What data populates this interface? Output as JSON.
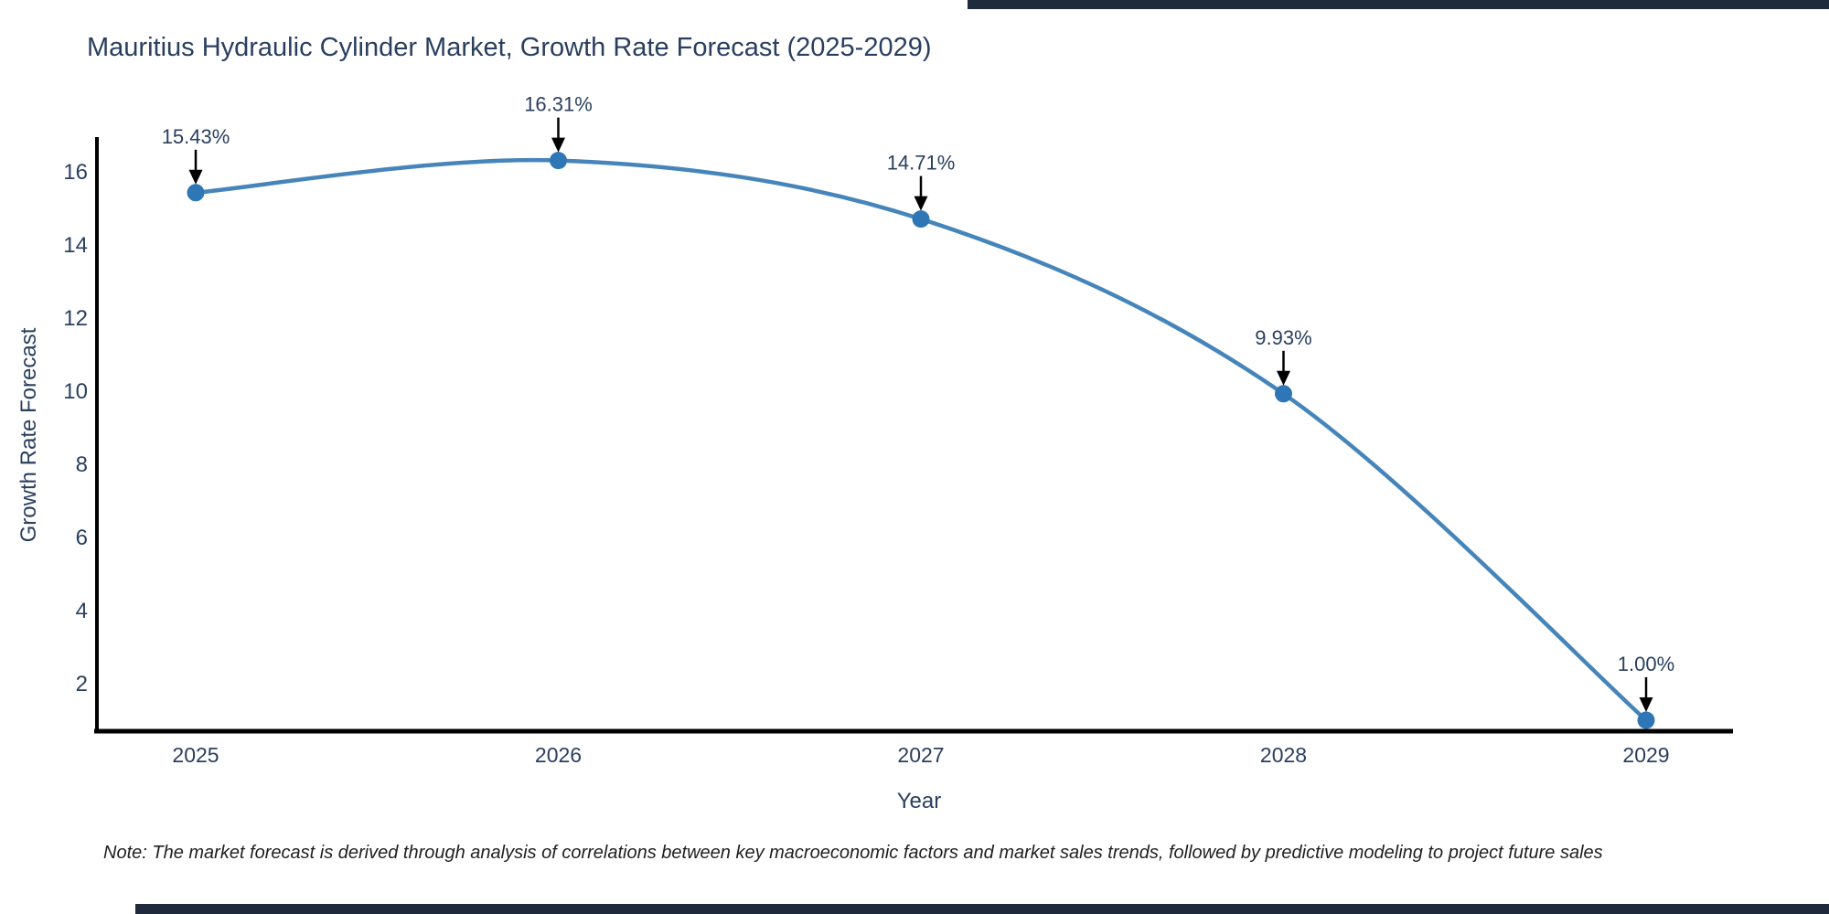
{
  "page": {
    "background": "#ffffff",
    "edge_bar_color": "#1f2a3c"
  },
  "note": "Note: The market forecast is derived through analysis of correlations between key macroeconomic factors and market sales trends, followed by predictive modeling to project future sales",
  "chart_data": {
    "type": "line",
    "title": "Mauritius Hydraulic Cylinder Market, Growth Rate Forecast (2025-2029)",
    "xlabel": "Year",
    "ylabel": "Growth Rate Forecast",
    "x": [
      2025,
      2026,
      2027,
      2028,
      2029
    ],
    "values": [
      15.43,
      16.31,
      14.71,
      9.93,
      1.0
    ],
    "point_labels": [
      "15.43%",
      "16.31%",
      "14.71%",
      "9.93%",
      "1.00%"
    ],
    "xticks": [
      "2025",
      "2026",
      "2027",
      "2028",
      "2029"
    ],
    "yticks": [
      2,
      4,
      6,
      8,
      10,
      12,
      14,
      16
    ],
    "ylim": [
      0.65,
      16.95
    ],
    "grid": false,
    "legend": "none",
    "line_shape": "spline",
    "colors": {
      "line": "#4685ba",
      "marker": "#2e76b5",
      "axis": "#000000",
      "text": "#2a3f5f",
      "annotation_arrow": "#000000",
      "annotation_text": "#2a3f5f"
    }
  }
}
